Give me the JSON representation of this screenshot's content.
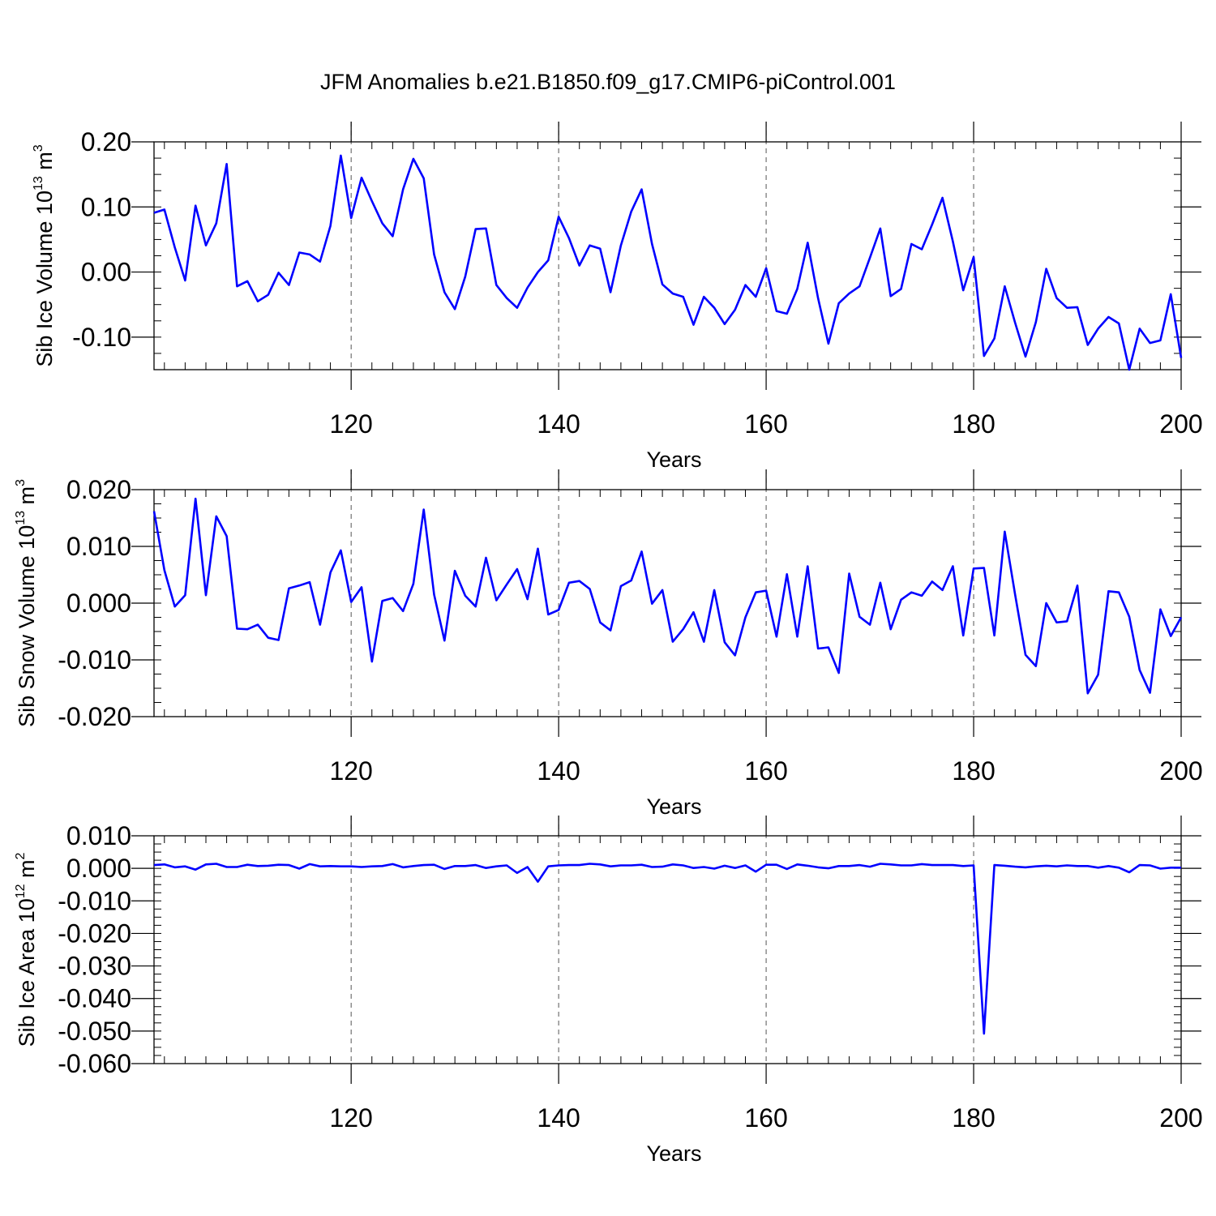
{
  "title": "JFM Anomalies b.e21.B1850.f09_g17.CMIP6-piControl.001",
  "line_color": "#0000ff",
  "chart_data": [
    {
      "type": "line",
      "ylabel_main": "Sib Ice Volume 10",
      "ylabel_exp": "13",
      "ylabel_unit": " m",
      "ylabel_unit_exp": "3",
      "xlabel": "Years",
      "xlim": [
        101,
        200
      ],
      "ylim": [
        -0.15,
        0.2
      ],
      "yticks": [
        0.2,
        0.1,
        0.0,
        -0.1
      ],
      "ytick_labels": [
        "0.20",
        "0.10",
        "0.00",
        "-0.10"
      ],
      "xticks": [
        120,
        140,
        160,
        180,
        200
      ],
      "xtick_labels": [
        "120",
        "140",
        "160",
        "180",
        "200"
      ],
      "x_start": 101,
      "values": [
        0.091,
        0.096,
        0.038,
        -0.013,
        0.102,
        0.041,
        0.075,
        0.166,
        -0.022,
        -0.014,
        -0.045,
        -0.035,
        -0.001,
        -0.02,
        0.03,
        0.027,
        0.016,
        0.071,
        0.179,
        0.083,
        0.145,
        0.109,
        0.075,
        0.055,
        0.127,
        0.174,
        0.144,
        0.027,
        -0.031,
        -0.057,
        -0.007,
        0.066,
        0.067,
        -0.02,
        -0.04,
        -0.055,
        -0.024,
        0.0,
        0.018,
        0.085,
        0.052,
        0.01,
        0.041,
        0.036,
        -0.031,
        0.041,
        0.093,
        0.127,
        0.043,
        -0.019,
        -0.033,
        -0.038,
        -0.081,
        -0.038,
        -0.055,
        -0.08,
        -0.058,
        -0.02,
        -0.038,
        0.006,
        -0.06,
        -0.064,
        -0.026,
        0.045,
        -0.04,
        -0.11,
        -0.048,
        -0.033,
        -0.022,
        0.022,
        0.067,
        -0.037,
        -0.026,
        0.043,
        0.035,
        0.073,
        0.114,
        0.047,
        -0.028,
        0.023,
        -0.129,
        -0.102,
        -0.022,
        -0.078,
        -0.13,
        -0.077,
        0.005,
        -0.04,
        -0.055,
        -0.054,
        -0.112,
        -0.087,
        -0.069,
        -0.079,
        -0.15,
        -0.087,
        -0.109,
        -0.105,
        -0.034,
        -0.132
      ]
    },
    {
      "type": "line",
      "ylabel_main": "Sib Snow Volume 10",
      "ylabel_exp": "13",
      "ylabel_unit": " m",
      "ylabel_unit_exp": "3",
      "xlabel": "Years",
      "xlim": [
        101,
        200
      ],
      "ylim": [
        -0.02,
        0.02
      ],
      "yticks": [
        0.02,
        0.01,
        0.0,
        -0.01,
        -0.02
      ],
      "ytick_labels": [
        "0.020",
        "0.010",
        "0.000",
        "-0.010",
        "-0.020"
      ],
      "xticks": [
        120,
        140,
        160,
        180,
        200
      ],
      "xtick_labels": [
        "120",
        "140",
        "160",
        "180",
        "200"
      ],
      "x_start": 101,
      "values": [
        0.0162,
        0.0058,
        -0.0006,
        0.0014,
        0.0184,
        0.0014,
        0.0153,
        0.0118,
        -0.0045,
        -0.0046,
        -0.0038,
        -0.0061,
        -0.0065,
        0.0026,
        0.0031,
        0.0037,
        -0.0038,
        0.0054,
        0.0093,
        0.0002,
        0.0028,
        -0.0103,
        0.0004,
        0.0009,
        -0.0014,
        0.0034,
        0.0165,
        0.0015,
        -0.0066,
        0.0057,
        0.0013,
        -0.0006,
        0.008,
        0.0005,
        0.0033,
        0.006,
        0.0007,
        0.0096,
        -0.002,
        -0.0012,
        0.0036,
        0.0039,
        0.0025,
        -0.0034,
        -0.0048,
        0.003,
        0.004,
        0.0091,
        -0.0001,
        0.0023,
        -0.0068,
        -0.0046,
        -0.0016,
        -0.0068,
        0.0023,
        -0.0069,
        -0.0092,
        -0.0025,
        0.0019,
        0.0022,
        -0.0059,
        0.0051,
        -0.0059,
        0.0065,
        -0.008,
        -0.0078,
        -0.0123,
        0.0052,
        -0.0024,
        -0.0038,
        0.0036,
        -0.0046,
        0.0006,
        0.0019,
        0.0013,
        0.0038,
        0.0023,
        0.0065,
        -0.0057,
        0.0061,
        0.0062,
        -0.0057,
        0.0126,
        0.0015,
        -0.0091,
        -0.0111,
        0.0,
        -0.0034,
        -0.0032,
        0.0031,
        -0.0159,
        -0.0126,
        0.0021,
        0.0019,
        -0.0024,
        -0.0118,
        -0.0158,
        -0.0011,
        -0.0058,
        -0.0025
      ]
    },
    {
      "type": "line",
      "ylabel_main": "Sib Ice Area 10",
      "ylabel_exp": "12",
      "ylabel_unit": " m",
      "ylabel_unit_exp": "2",
      "xlabel": "Years",
      "xlim": [
        101,
        200
      ],
      "ylim": [
        -0.06,
        0.01
      ],
      "yticks": [
        0.01,
        0.0,
        -0.01,
        -0.02,
        -0.03,
        -0.04,
        -0.05,
        -0.06
      ],
      "ytick_labels": [
        "0.010",
        "0.000",
        "-0.010",
        "-0.020",
        "-0.030",
        "-0.040",
        "-0.050",
        "-0.060"
      ],
      "xticks": [
        120,
        140,
        160,
        180,
        200
      ],
      "xtick_labels": [
        "120",
        "140",
        "160",
        "180",
        "200"
      ],
      "x_start": 101,
      "values": [
        0.001,
        0.0012,
        0.0003,
        0.0006,
        -0.0004,
        0.0012,
        0.0014,
        0.0004,
        0.0004,
        0.0011,
        0.0007,
        0.0008,
        0.0011,
        0.001,
        -0.0001,
        0.0013,
        0.0006,
        0.0007,
        0.0006,
        0.0006,
        0.0004,
        0.0006,
        0.0007,
        0.0013,
        0.0003,
        0.0007,
        0.001,
        0.0011,
        -0.0002,
        0.0007,
        0.0007,
        0.001,
        0.0001,
        0.0006,
        0.0009,
        -0.0014,
        0.0004,
        -0.0041,
        0.0006,
        0.0009,
        0.001,
        0.001,
        0.0014,
        0.0012,
        0.0006,
        0.0009,
        0.0009,
        0.0011,
        0.0004,
        0.0005,
        0.0012,
        0.0009,
        0.0001,
        0.0004,
        -0.0001,
        0.0008,
        0.0001,
        0.0009,
        -0.001,
        0.0011,
        0.0011,
        -0.0002,
        0.0012,
        0.0008,
        0.0003,
        0.0,
        0.0007,
        0.0007,
        0.001,
        0.0005,
        0.0014,
        0.0012,
        0.0009,
        0.0009,
        0.0013,
        0.001,
        0.001,
        0.001,
        0.0007,
        0.0009,
        -0.0508,
        0.001,
        0.0008,
        0.0005,
        0.0003,
        0.0006,
        0.0008,
        0.0006,
        0.0009,
        0.0007,
        0.0007,
        0.0002,
        0.0007,
        0.0002,
        -0.0012,
        0.001,
        0.0009,
        -0.0001,
        0.0002,
        0.0002
      ]
    }
  ]
}
